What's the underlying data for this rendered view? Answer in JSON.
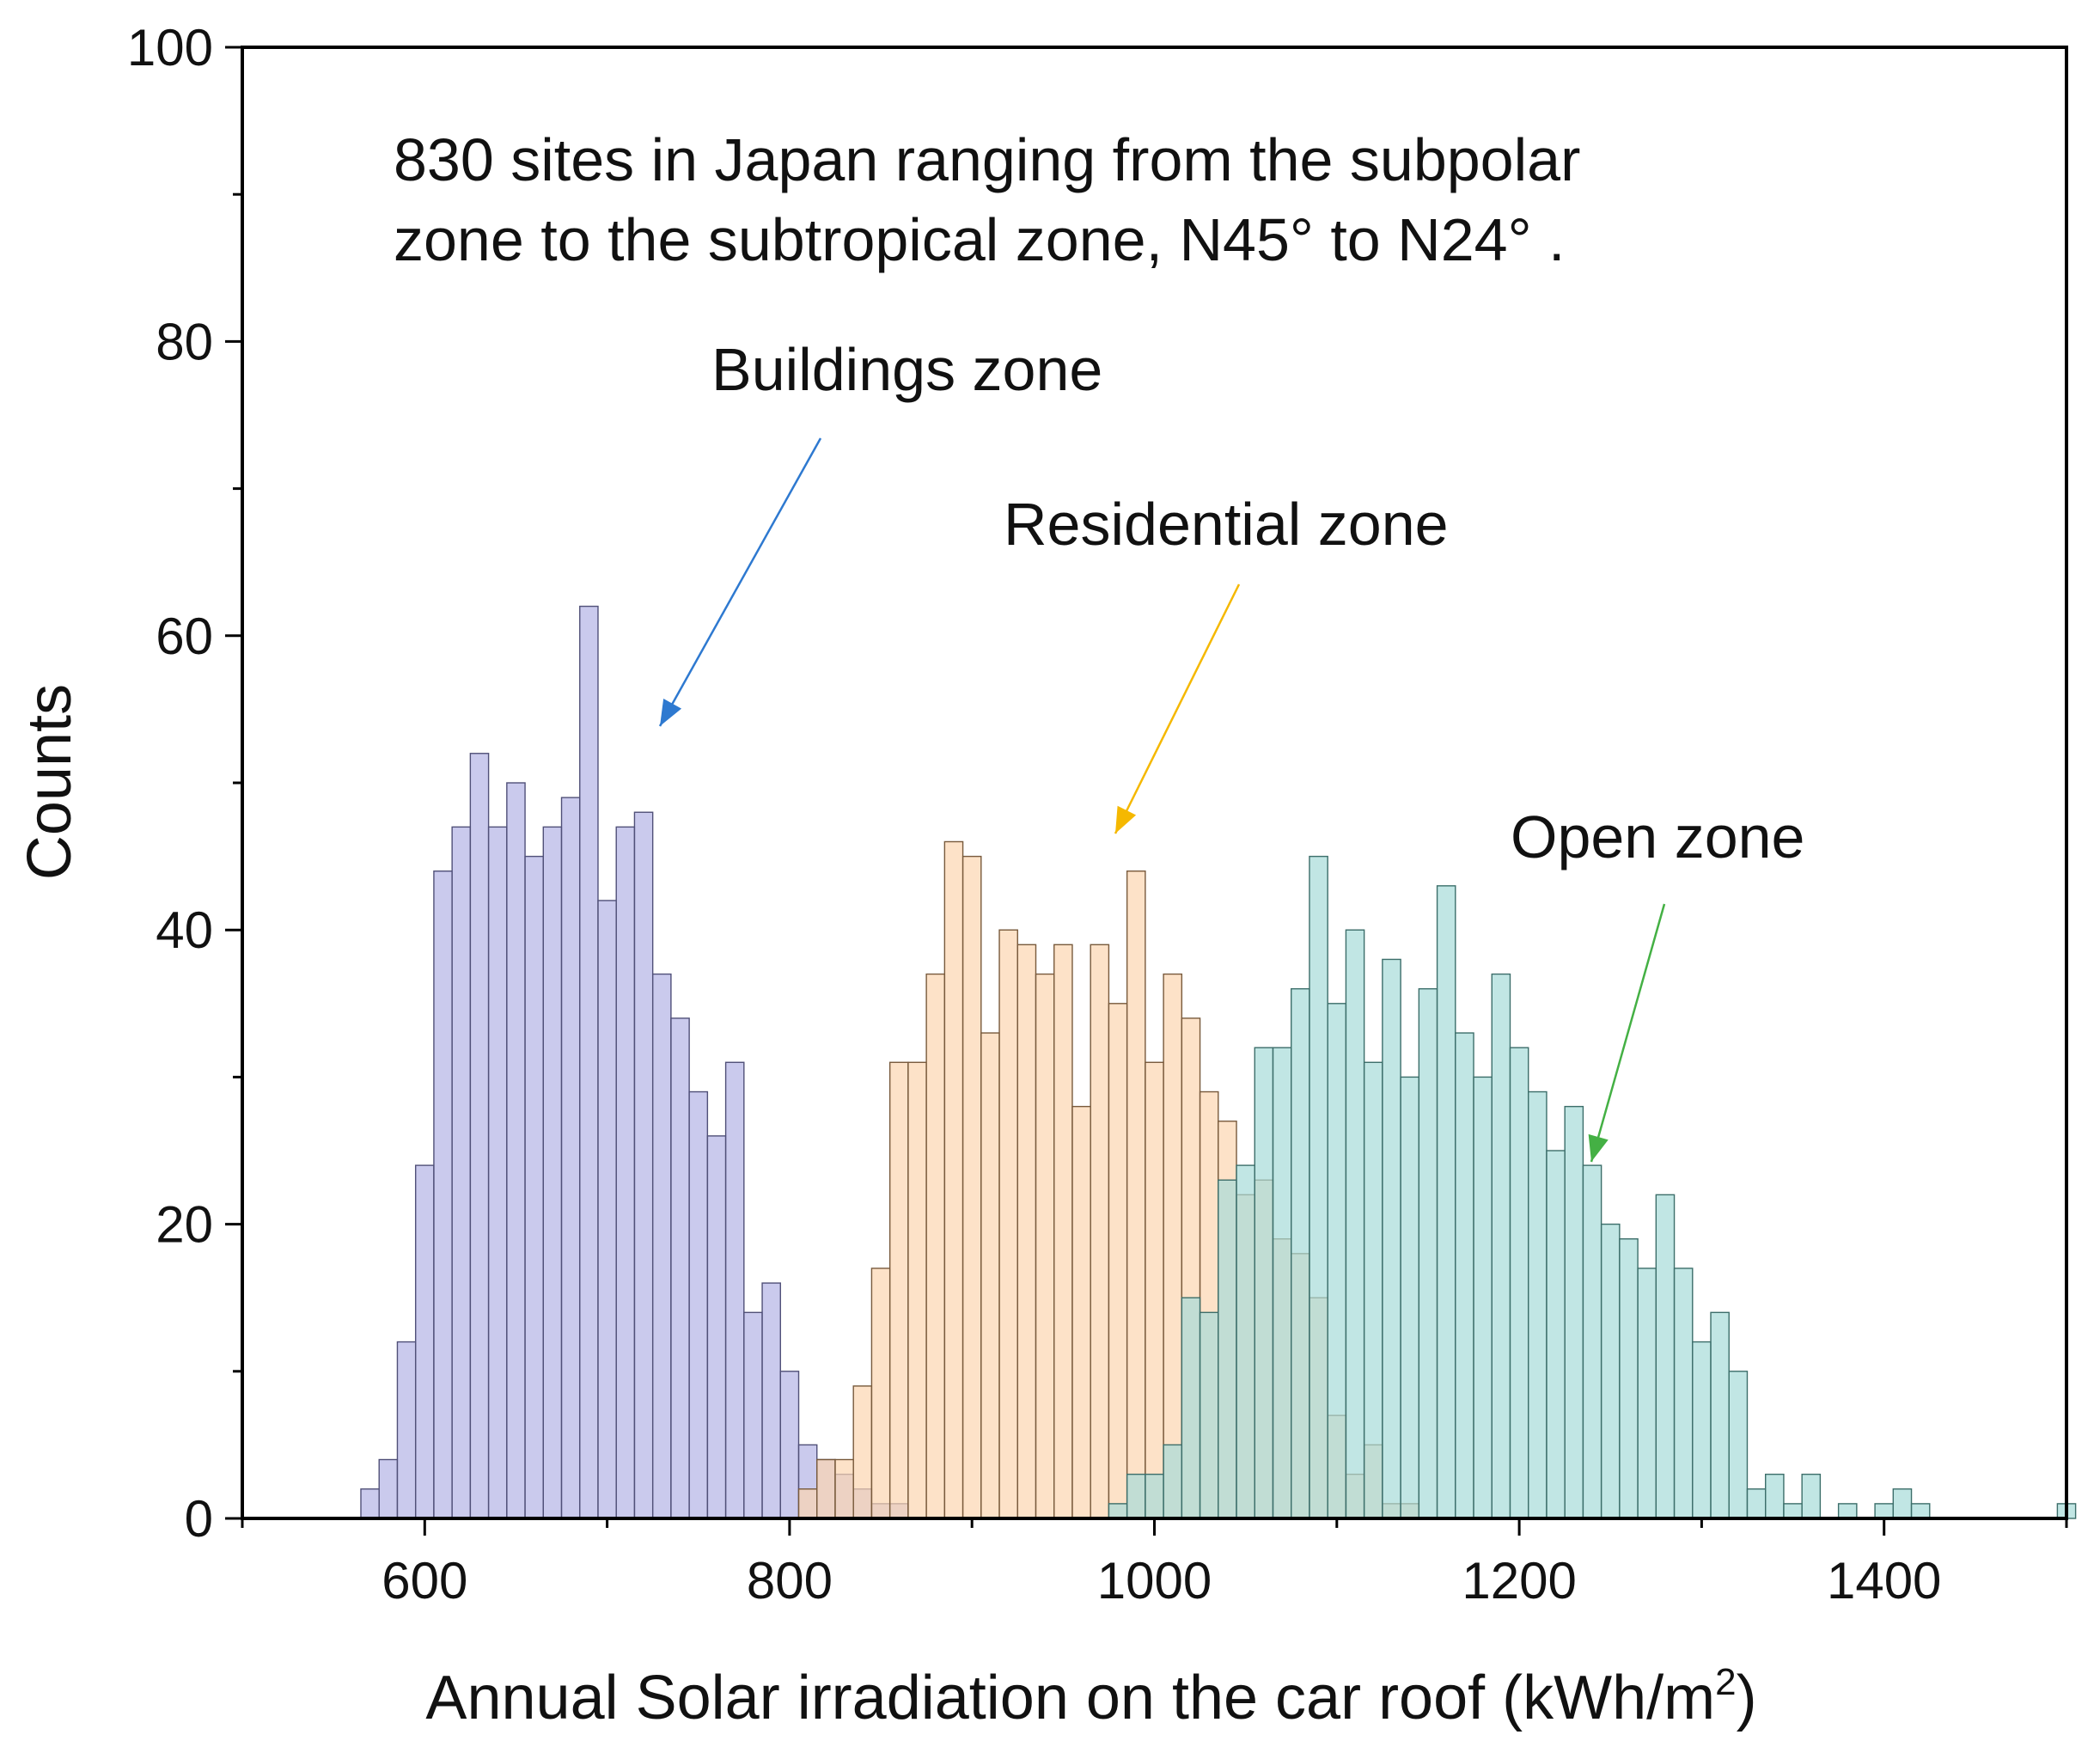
{
  "chart_data": {
    "type": "bar",
    "subtype": "overlapping histogram",
    "xlabel": "Annual Solar irradiation on the car roof (kWh/m",
    "xlabel_superscript": "2",
    "xlabel_close": ")",
    "ylabel": "Counts",
    "xlim": [
      500,
      1500
    ],
    "ylim": [
      0,
      100
    ],
    "x_ticks": [
      600,
      800,
      1000,
      1200,
      1400
    ],
    "x_tick_labels": [
      "600",
      "800",
      "1000",
      "1200",
      "1400"
    ],
    "y_ticks": [
      0,
      20,
      40,
      60,
      80,
      100
    ],
    "y_tick_labels": [
      "0",
      "20",
      "40",
      "60",
      "80",
      "100"
    ],
    "bin_width": 10,
    "grid": false,
    "annotation": {
      "line1": "830 sites in Japan ranging from the subpolar",
      "line2": "zone to the subtropical zone, N45°   to N24°   ."
    },
    "series": [
      {
        "name": "Buildings zone",
        "color": "#b4b4e6",
        "edge": "#505078",
        "arrow_color": "#2e79d0",
        "bins": [
          {
            "x": 570,
            "y": 2
          },
          {
            "x": 580,
            "y": 4
          },
          {
            "x": 590,
            "y": 12
          },
          {
            "x": 600,
            "y": 24
          },
          {
            "x": 610,
            "y": 44
          },
          {
            "x": 620,
            "y": 47
          },
          {
            "x": 630,
            "y": 52
          },
          {
            "x": 640,
            "y": 47
          },
          {
            "x": 650,
            "y": 50
          },
          {
            "x": 660,
            "y": 45
          },
          {
            "x": 670,
            "y": 47
          },
          {
            "x": 680,
            "y": 49
          },
          {
            "x": 690,
            "y": 62
          },
          {
            "x": 700,
            "y": 42
          },
          {
            "x": 710,
            "y": 47
          },
          {
            "x": 720,
            "y": 48
          },
          {
            "x": 730,
            "y": 37
          },
          {
            "x": 740,
            "y": 34
          },
          {
            "x": 750,
            "y": 29
          },
          {
            "x": 760,
            "y": 26
          },
          {
            "x": 770,
            "y": 31
          },
          {
            "x": 780,
            "y": 14
          },
          {
            "x": 790,
            "y": 16
          },
          {
            "x": 800,
            "y": 10
          },
          {
            "x": 810,
            "y": 5
          },
          {
            "x": 820,
            "y": 4
          },
          {
            "x": 830,
            "y": 3
          },
          {
            "x": 840,
            "y": 2
          },
          {
            "x": 850,
            "y": 1
          },
          {
            "x": 860,
            "y": 1
          }
        ]
      },
      {
        "name": "Residential  zone",
        "color": "#fcd6b0",
        "edge": "#785a3c",
        "arrow_color": "#f5b800",
        "bins": [
          {
            "x": 810,
            "y": 2
          },
          {
            "x": 820,
            "y": 4
          },
          {
            "x": 830,
            "y": 4
          },
          {
            "x": 840,
            "y": 9
          },
          {
            "x": 850,
            "y": 17
          },
          {
            "x": 860,
            "y": 31
          },
          {
            "x": 870,
            "y": 31
          },
          {
            "x": 880,
            "y": 37
          },
          {
            "x": 890,
            "y": 46
          },
          {
            "x": 900,
            "y": 45
          },
          {
            "x": 910,
            "y": 33
          },
          {
            "x": 920,
            "y": 40
          },
          {
            "x": 930,
            "y": 39
          },
          {
            "x": 940,
            "y": 37
          },
          {
            "x": 950,
            "y": 39
          },
          {
            "x": 960,
            "y": 28
          },
          {
            "x": 970,
            "y": 39
          },
          {
            "x": 980,
            "y": 35
          },
          {
            "x": 990,
            "y": 44
          },
          {
            "x": 1000,
            "y": 31
          },
          {
            "x": 1010,
            "y": 37
          },
          {
            "x": 1020,
            "y": 34
          },
          {
            "x": 1030,
            "y": 29
          },
          {
            "x": 1040,
            "y": 27
          },
          {
            "x": 1050,
            "y": 22
          },
          {
            "x": 1060,
            "y": 23
          },
          {
            "x": 1070,
            "y": 19
          },
          {
            "x": 1080,
            "y": 18
          },
          {
            "x": 1090,
            "y": 15
          },
          {
            "x": 1100,
            "y": 7
          },
          {
            "x": 1110,
            "y": 3
          },
          {
            "x": 1120,
            "y": 5
          },
          {
            "x": 1130,
            "y": 1
          },
          {
            "x": 1140,
            "y": 1
          }
        ]
      },
      {
        "name": "Open zone",
        "color": "#a6dcd8",
        "edge": "#3c6e6a",
        "arrow_color": "#44b044",
        "bins": [
          {
            "x": 980,
            "y": 1
          },
          {
            "x": 990,
            "y": 3
          },
          {
            "x": 1000,
            "y": 3
          },
          {
            "x": 1010,
            "y": 5
          },
          {
            "x": 1020,
            "y": 15
          },
          {
            "x": 1030,
            "y": 14
          },
          {
            "x": 1040,
            "y": 23
          },
          {
            "x": 1050,
            "y": 24
          },
          {
            "x": 1060,
            "y": 32
          },
          {
            "x": 1070,
            "y": 32
          },
          {
            "x": 1080,
            "y": 36
          },
          {
            "x": 1090,
            "y": 45
          },
          {
            "x": 1100,
            "y": 35
          },
          {
            "x": 1110,
            "y": 40
          },
          {
            "x": 1120,
            "y": 31
          },
          {
            "x": 1130,
            "y": 38
          },
          {
            "x": 1140,
            "y": 30
          },
          {
            "x": 1150,
            "y": 36
          },
          {
            "x": 1160,
            "y": 43
          },
          {
            "x": 1170,
            "y": 33
          },
          {
            "x": 1180,
            "y": 30
          },
          {
            "x": 1190,
            "y": 37
          },
          {
            "x": 1200,
            "y": 32
          },
          {
            "x": 1210,
            "y": 29
          },
          {
            "x": 1220,
            "y": 25
          },
          {
            "x": 1230,
            "y": 28
          },
          {
            "x": 1240,
            "y": 24
          },
          {
            "x": 1250,
            "y": 20
          },
          {
            "x": 1260,
            "y": 19
          },
          {
            "x": 1270,
            "y": 17
          },
          {
            "x": 1280,
            "y": 22
          },
          {
            "x": 1290,
            "y": 17
          },
          {
            "x": 1300,
            "y": 12
          },
          {
            "x": 1310,
            "y": 14
          },
          {
            "x": 1320,
            "y": 10
          },
          {
            "x": 1330,
            "y": 2
          },
          {
            "x": 1340,
            "y": 3
          },
          {
            "x": 1350,
            "y": 1
          },
          {
            "x": 1360,
            "y": 3
          },
          {
            "x": 1380,
            "y": 1
          },
          {
            "x": 1400,
            "y": 1
          },
          {
            "x": 1410,
            "y": 2
          },
          {
            "x": 1420,
            "y": 1
          },
          {
            "x": 1500,
            "y": 1
          }
        ]
      }
    ]
  }
}
